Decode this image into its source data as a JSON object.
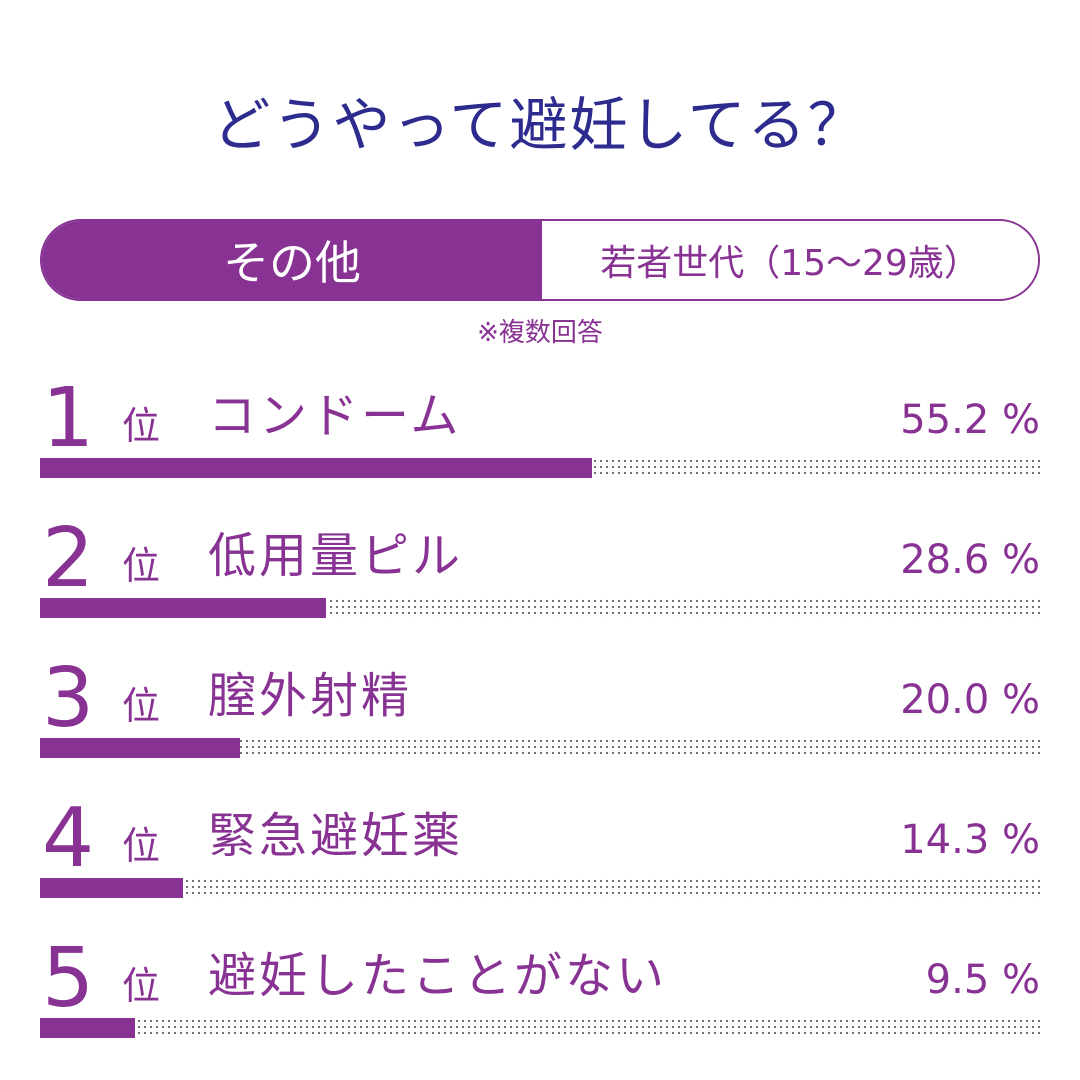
{
  "title": "どうやって避妊してる？",
  "toggle": {
    "active_label": "その他",
    "inactive_label": "若者世代（15〜29歳）"
  },
  "note": "※複数回答",
  "rank_suffix": "位",
  "value_unit": "%",
  "colors": {
    "accent": "#883393",
    "title": "#2e2b8f",
    "dots": "#6a6a6a"
  },
  "chart_data": {
    "type": "bar",
    "orientation": "horizontal",
    "title": "どうやって避妊してる？",
    "xlim": [
      0,
      100
    ],
    "unit": "%",
    "categories": [
      "コンドーム",
      "低用量ピル",
      "膣外射精",
      "緊急避妊薬",
      "避妊したことがない"
    ],
    "values": [
      55.2,
      28.6,
      20.0,
      14.3,
      9.5
    ],
    "ranks": [
      "1",
      "2",
      "3",
      "4",
      "5"
    ],
    "value_labels": [
      "55.2",
      "28.6",
      "20.0",
      "14.3",
      "9.5"
    ]
  }
}
